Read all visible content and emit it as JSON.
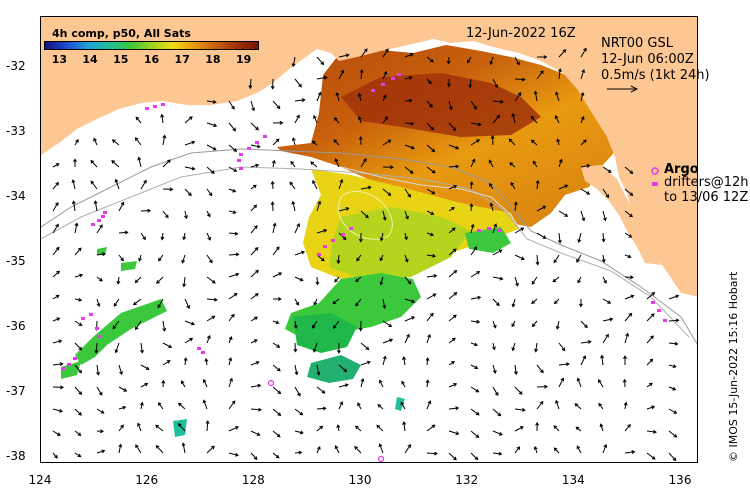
{
  "map": {
    "product_title": "4h comp, p50, All Sats",
    "date_label": "12-Jun-2022 16Z",
    "current_source": "NRT00 GSL",
    "current_time": "12-Jun 06:00Z",
    "current_scale": "0.5m/s (1kt 24h)",
    "legend_argo": "Argo",
    "legend_drifters_line1": "drifters@12h",
    "legend_drifters_line2": "to 13/06 12Z",
    "credit": "© IMOS 15-Jun-2022 15:16 Hobart",
    "colors": {
      "land": "#fcc793",
      "coast_shelf": "#9a9a9a",
      "argo": "#e43ce4",
      "arrow": "#000000"
    },
    "colorbar": {
      "ticks": [
        "13",
        "14",
        "15",
        "16",
        "17",
        "18",
        "19"
      ],
      "range": [
        12.5,
        19.5
      ],
      "colors": [
        "#13137f",
        "#1f4ad0",
        "#1fa0d8",
        "#20c09a",
        "#3cc83c",
        "#9ad41e",
        "#f0dc14",
        "#e89a10",
        "#c8600c",
        "#a0320a",
        "#7a1405"
      ]
    },
    "lon_ticks": [
      "124",
      "126",
      "128",
      "130",
      "132",
      "134",
      "136"
    ],
    "lat_ticks": [
      "-32",
      "-33",
      "-34",
      "-35",
      "-36",
      "-37",
      "-38"
    ]
  }
}
